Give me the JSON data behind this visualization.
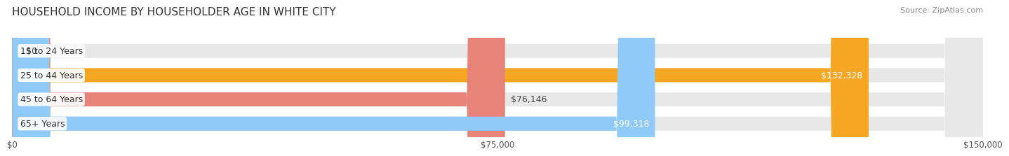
{
  "title": "HOUSEHOLD INCOME BY HOUSEHOLDER AGE IN WHITE CITY",
  "source": "Source: ZipAtlas.com",
  "categories": [
    "15 to 24 Years",
    "25 to 44 Years",
    "45 to 64 Years",
    "65+ Years"
  ],
  "values": [
    0,
    132328,
    76146,
    99318
  ],
  "bar_colors": [
    "#f48fb1",
    "#f5a623",
    "#e8837a",
    "#90caf9"
  ],
  "bar_bg_color": "#e8e8e8",
  "max_value": 150000,
  "xticks": [
    0,
    75000,
    150000
  ],
  "xtick_labels": [
    "$0",
    "$75,000",
    "$150,000"
  ],
  "value_labels": [
    "$0",
    "$132,328",
    "$76,146",
    "$99,318"
  ],
  "value_label_inside": [
    false,
    true,
    false,
    true
  ],
  "title_fontsize": 11,
  "source_fontsize": 8,
  "label_fontsize": 9,
  "bar_label_fontsize": 9,
  "background_color": "#ffffff",
  "bar_height": 0.58
}
